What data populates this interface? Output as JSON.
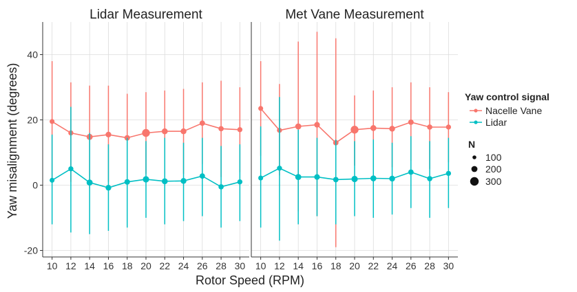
{
  "chart_data": {
    "type": "scatter",
    "panels": [
      {
        "title": "Lidar Measurement",
        "series": [
          {
            "name": "Nacelle Vane",
            "x": [
              10,
              12,
              14,
              16,
              18,
              20,
              22,
              24,
              26,
              28,
              30
            ],
            "y": [
              19.5,
              16,
              14.8,
              15.5,
              14.5,
              16,
              16.5,
              16.5,
              19,
              17.3,
              17
            ],
            "ymin": [
              1.5,
              1,
              -1,
              1,
              0.5,
              3.5,
              3.5,
              3.5,
              6.5,
              2.5,
              4
            ],
            "ymax": [
              38,
              31.5,
              30.5,
              30.5,
              28,
              28.5,
              29,
              29.5,
              31.5,
              32,
              30
            ],
            "n": [
              80,
              90,
              160,
              130,
              120,
              330,
              150,
              140,
              110,
              100,
              90
            ]
          },
          {
            "name": "Lidar",
            "x": [
              10,
              12,
              14,
              16,
              18,
              20,
              22,
              24,
              26,
              28,
              30
            ],
            "y": [
              1.5,
              5,
              0.8,
              -0.8,
              1,
              1.8,
              1.2,
              1.3,
              2.8,
              -0.5,
              1
            ],
            "ymin": [
              -12,
              -14.5,
              -15,
              -14,
              -13,
              -10,
              -12,
              -11,
              -9.5,
              -13,
              -11
            ],
            "ymax": [
              15.5,
              24,
              16,
              12.5,
              14.5,
              13.5,
              14.5,
              13,
              14.5,
              12,
              12.5
            ],
            "n": [
              80,
              90,
              160,
              130,
              120,
              180,
              150,
              140,
              110,
              100,
              90
            ]
          }
        ]
      },
      {
        "title": "Met Vane Measurement",
        "series": [
          {
            "name": "Nacelle Vane",
            "x": [
              10,
              12,
              14,
              16,
              18,
              20,
              22,
              24,
              26,
              28,
              30
            ],
            "y": [
              23.5,
              16.8,
              18,
              18.5,
              13,
              17,
              17.5,
              17.3,
              19.3,
              17.8,
              17.8
            ],
            "ymin": [
              9,
              3,
              -8,
              -9.5,
              -19,
              6,
              5.5,
              5.5,
              7.5,
              5,
              7
            ],
            "ymax": [
              38,
              31,
              44,
              47,
              45,
              27.5,
              29,
              30,
              31.5,
              30,
              28.5
            ],
            "n": [
              80,
              90,
              160,
              130,
              110,
              330,
              150,
              140,
              110,
              100,
              90
            ]
          },
          {
            "name": "Lidar",
            "x": [
              10,
              12,
              14,
              16,
              18,
              20,
              22,
              24,
              26,
              28,
              30
            ],
            "y": [
              2.2,
              5.2,
              2.5,
              2.5,
              1.7,
              1.9,
              2.1,
              2,
              4,
              2,
              3.6
            ],
            "ymin": [
              -13,
              -17,
              -12,
              -9.5,
              -12,
              -9.5,
              -10,
              -9,
              -7,
              -10,
              -7
            ],
            "ymax": [
              18,
              27,
              17,
              14.5,
              14,
              13.5,
              14,
              13,
              15,
              13.5,
              14.5
            ],
            "n": [
              80,
              90,
              160,
              130,
              110,
              180,
              150,
              140,
              110,
              100,
              90
            ]
          }
        ]
      }
    ],
    "xlabel": "Rotor Speed (RPM)",
    "ylabel": "Yaw misalignment (degrees)",
    "xticks": [
      10,
      12,
      14,
      16,
      18,
      20,
      22,
      24,
      26,
      28,
      30
    ],
    "yticks": [
      -20,
      0,
      20,
      40
    ],
    "xlim": [
      9,
      31
    ],
    "ylim": [
      -22,
      50
    ],
    "grid": true,
    "legend_placement": "right",
    "legend": {
      "color_title": "Yaw control signal",
      "color_entries": [
        "Nacelle Vane",
        "Lidar"
      ],
      "size_title": "N",
      "size_entries": [
        100,
        200,
        300
      ]
    },
    "colors": {
      "Nacelle Vane": "#F8766D",
      "Lidar": "#00BFC4"
    }
  }
}
